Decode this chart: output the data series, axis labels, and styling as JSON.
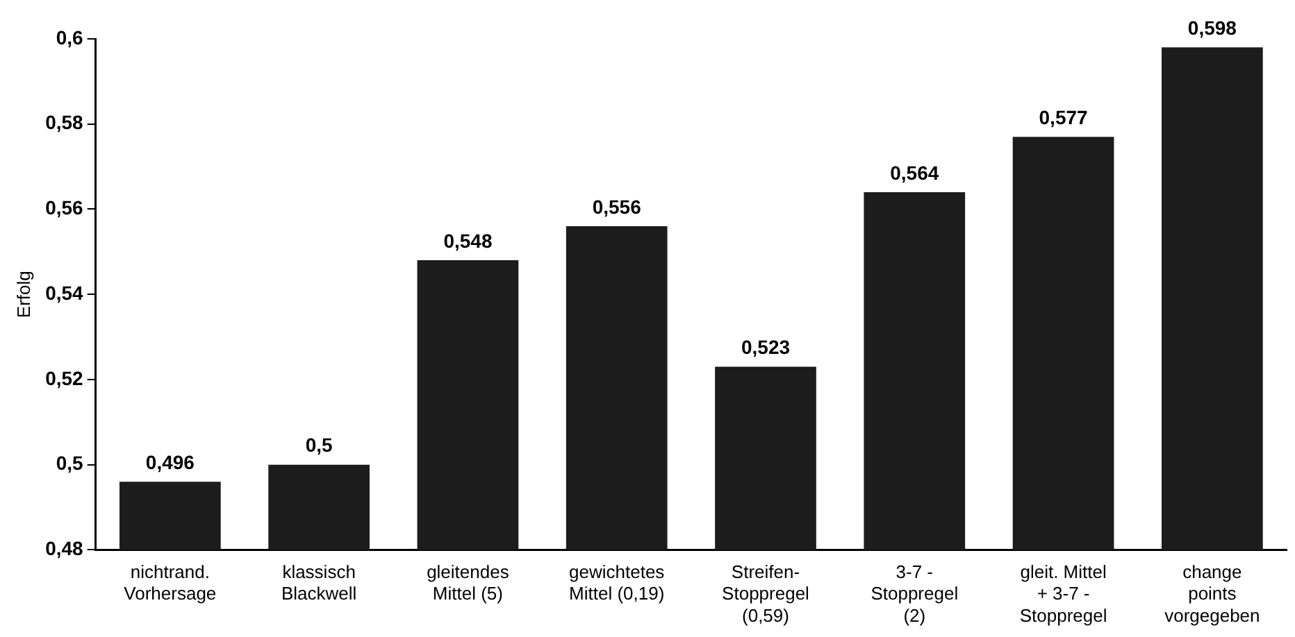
{
  "chart_data": {
    "type": "bar",
    "ylabel": "Erfolg",
    "categories": [
      "nichtrand.\nVorhersage",
      "klassisch\nBlackwell",
      "gleitendes\nMittel (5)",
      "gewichtetes\nMittel (0,19)",
      "Streifen-\nStoppregel\n(0,59)",
      "3-7 -\nStoppregel\n(2)",
      "gleit. Mittel\n+ 3-7 -\nStoppregel",
      "change\npoints\nvorgegeben"
    ],
    "values": [
      0.496,
      0.5,
      0.548,
      0.556,
      0.523,
      0.564,
      0.577,
      0.598
    ],
    "value_labels": [
      "0,496",
      "0,5",
      "0,548",
      "0,556",
      "0,523",
      "0,564",
      "0,577",
      "0,598"
    ],
    "color": "#1c1c1c",
    "ylim": [
      0.48,
      0.6
    ],
    "yticks": [
      {
        "value": 0.48,
        "label": "0,48"
      },
      {
        "value": 0.5,
        "label": "0,5"
      },
      {
        "value": 0.52,
        "label": "0,52"
      },
      {
        "value": 0.54,
        "label": "0,54"
      },
      {
        "value": 0.56,
        "label": "0,56"
      },
      {
        "value": 0.58,
        "label": "0,58"
      },
      {
        "value": 0.6,
        "label": "0,6"
      }
    ],
    "grid": false,
    "legend": false
  }
}
